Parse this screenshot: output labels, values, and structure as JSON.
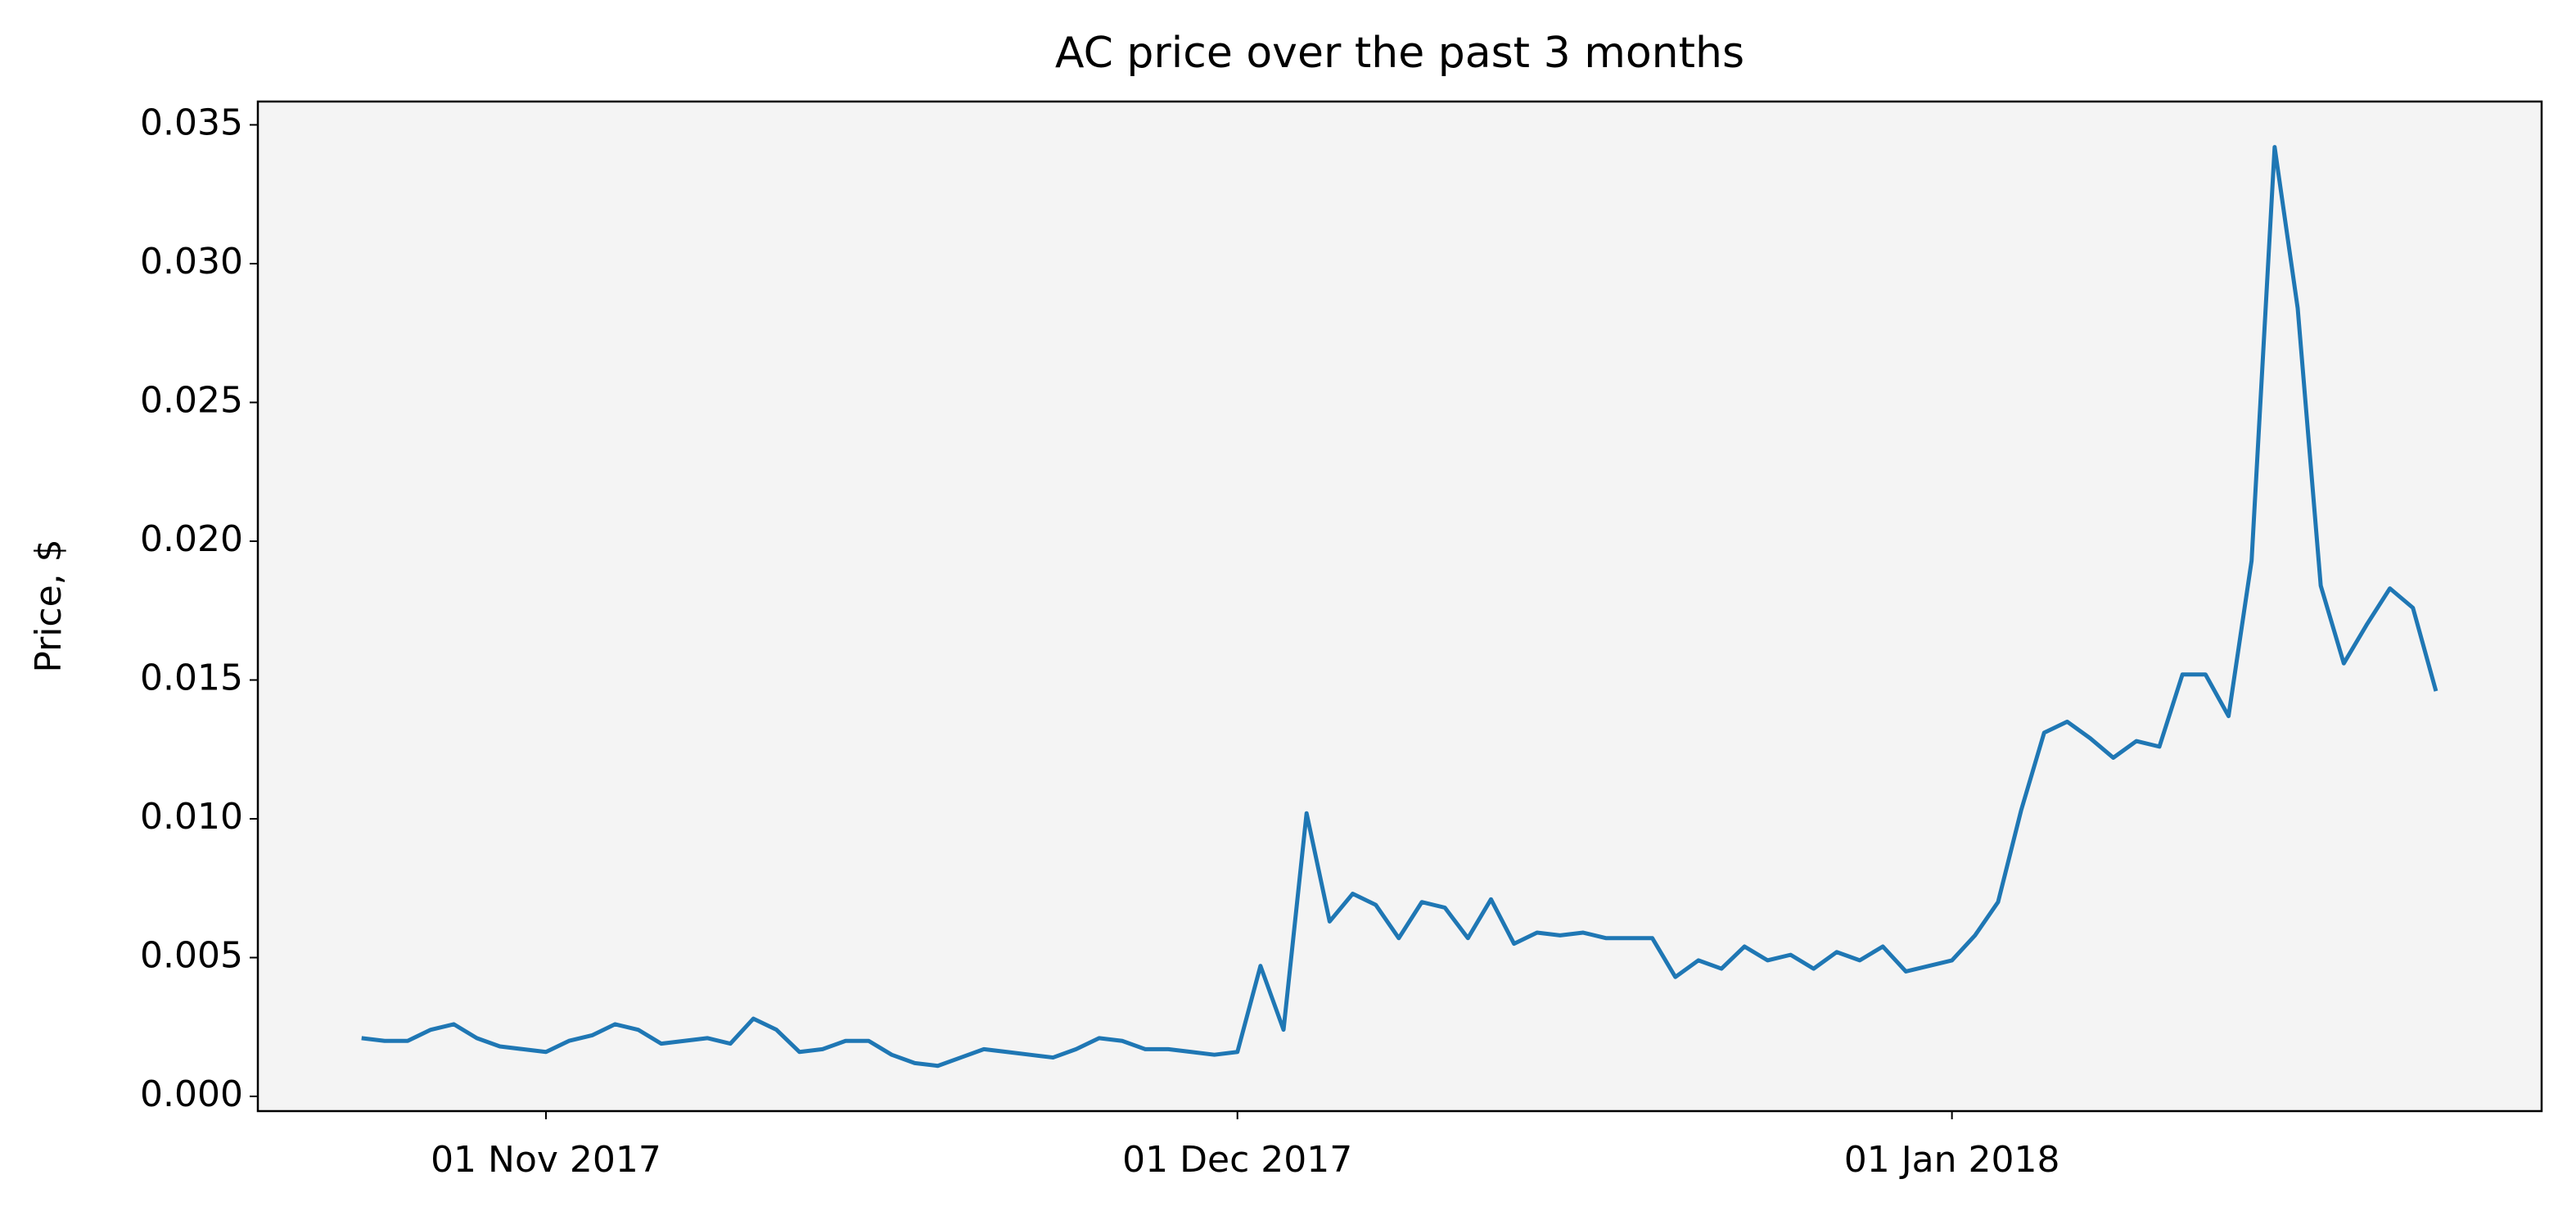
{
  "chart_data": {
    "type": "line",
    "title": "AC price over the past 3 months",
    "y_label": "Price, $",
    "x": [
      "2017-10-24",
      "2017-10-25",
      "2017-10-26",
      "2017-10-27",
      "2017-10-28",
      "2017-10-29",
      "2017-10-30",
      "2017-10-31",
      "2017-11-01",
      "2017-11-02",
      "2017-11-03",
      "2017-11-04",
      "2017-11-05",
      "2017-11-06",
      "2017-11-07",
      "2017-11-08",
      "2017-11-09",
      "2017-11-10",
      "2017-11-11",
      "2017-11-12",
      "2017-11-13",
      "2017-11-14",
      "2017-11-15",
      "2017-11-16",
      "2017-11-17",
      "2017-11-18",
      "2017-11-19",
      "2017-11-20",
      "2017-11-21",
      "2017-11-22",
      "2017-11-23",
      "2017-11-24",
      "2017-11-25",
      "2017-11-26",
      "2017-11-27",
      "2017-11-28",
      "2017-11-29",
      "2017-11-30",
      "2017-12-01",
      "2017-12-02",
      "2017-12-03",
      "2017-12-04",
      "2017-12-05",
      "2017-12-06",
      "2017-12-07",
      "2017-12-08",
      "2017-12-09",
      "2017-12-10",
      "2017-12-11",
      "2017-12-12",
      "2017-12-13",
      "2017-12-14",
      "2017-12-15",
      "2017-12-16",
      "2017-12-17",
      "2017-12-18",
      "2017-12-19",
      "2017-12-20",
      "2017-12-21",
      "2017-12-22",
      "2017-12-23",
      "2017-12-24",
      "2017-12-25",
      "2017-12-26",
      "2017-12-27",
      "2017-12-28",
      "2017-12-29",
      "2017-12-30",
      "2017-12-31",
      "2018-01-01",
      "2018-01-02",
      "2018-01-03",
      "2018-01-04",
      "2018-01-05",
      "2018-01-06",
      "2018-01-07",
      "2018-01-08",
      "2018-01-09",
      "2018-01-10",
      "2018-01-11",
      "2018-01-12",
      "2018-01-13",
      "2018-01-14",
      "2018-01-15",
      "2018-01-16",
      "2018-01-17",
      "2018-01-18",
      "2018-01-19",
      "2018-01-20",
      "2018-01-21",
      "2018-01-22"
    ],
    "series": [
      {
        "color": "#1f77b4",
        "values": [
          0.0021,
          0.002,
          0.002,
          0.0024,
          0.0026,
          0.0021,
          0.0018,
          0.0017,
          0.0016,
          0.002,
          0.0022,
          0.0026,
          0.0024,
          0.0019,
          0.002,
          0.0021,
          0.0019,
          0.0028,
          0.0024,
          0.0016,
          0.0017,
          0.002,
          0.002,
          0.0015,
          0.0012,
          0.0011,
          0.0014,
          0.0017,
          0.0016,
          0.0015,
          0.0014,
          0.0017,
          0.0021,
          0.002,
          0.0017,
          0.0017,
          0.0016,
          0.0015,
          0.0016,
          0.0047,
          0.0024,
          0.0102,
          0.0063,
          0.0073,
          0.0069,
          0.0057,
          0.007,
          0.0068,
          0.0057,
          0.0071,
          0.0055,
          0.0059,
          0.0058,
          0.0059,
          0.0057,
          0.0057,
          0.0057,
          0.0043,
          0.0049,
          0.0046,
          0.0054,
          0.0049,
          0.0051,
          0.0046,
          0.0052,
          0.0049,
          0.0054,
          0.0045,
          0.0047,
          0.0049,
          0.0058,
          0.007,
          0.0103,
          0.0131,
          0.0135,
          0.0129,
          0.0122,
          0.0128,
          0.0126,
          0.0152,
          0.0152,
          0.0137,
          0.0193,
          0.0342,
          0.0284,
          0.0184,
          0.0156,
          0.017,
          0.0183,
          0.0176,
          0.0146
        ]
      }
    ],
    "xlim": [
      "2017-10-19T12:00",
      "2018-01-26T14:00"
    ],
    "xticks": [
      {
        "value": "2017-11-01",
        "label": "01 Nov 2017"
      },
      {
        "value": "2017-12-01",
        "label": "01 Dec 2017"
      },
      {
        "value": "2018-01-01",
        "label": "01 Jan 2018"
      }
    ],
    "ylim": [
      -0.00053,
      0.03584
    ],
    "yticks": [
      {
        "value": 0,
        "label": "0.000"
      },
      {
        "value": 0.005,
        "label": "0.005"
      },
      {
        "value": 0.01,
        "label": "0.010"
      },
      {
        "value": 0.015,
        "label": "0.015"
      },
      {
        "value": 0.02,
        "label": "0.020"
      },
      {
        "value": 0.025,
        "label": "0.025"
      },
      {
        "value": 0.03,
        "label": "0.030"
      },
      {
        "value": 0.035,
        "label": "0.035"
      }
    ],
    "background": "#f4f4f4"
  }
}
